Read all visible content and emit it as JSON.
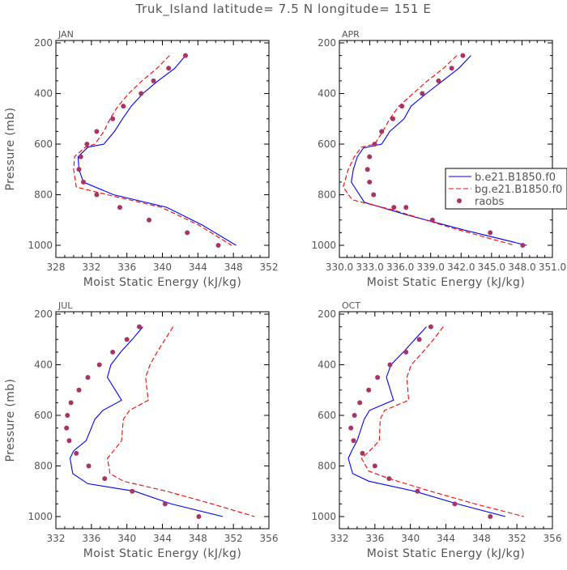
{
  "page": {
    "title": "Truk_Island  latitude= 7.5 N longitude= 151 E"
  },
  "colors": {
    "model1": "#0000ff",
    "model2": "#ff0000",
    "raobs": "#aa3366",
    "axis": "#000000",
    "label": "#555555"
  },
  "chart_data": [
    {
      "type": "line",
      "month": "JAN",
      "xlabel": "Moist Static Energy (kJ/kg)",
      "ylabel": "Pressure (mb)",
      "xlim": [
        328,
        352
      ],
      "ylim": [
        1000,
        200
      ],
      "xticks": [
        328,
        332,
        336,
        340,
        344,
        348,
        352
      ],
      "xtick_labels": [
        "328",
        "332",
        "336",
        "340",
        "344",
        "348",
        "352"
      ],
      "yticks": [
        200,
        400,
        600,
        800,
        1000
      ],
      "ytick_labels": [
        "200",
        "400",
        "600",
        "800",
        "1000"
      ],
      "grid": false,
      "series": [
        {
          "key": "model1",
          "style": "solid",
          "x": [
            342.6,
            341.4,
            339.5,
            337.8,
            336.5,
            335.5,
            334.6,
            333.4,
            331.6,
            330.5,
            330.6,
            331.1,
            334.5,
            340.5,
            344.5,
            348.3
          ],
          "y": [
            250,
            300,
            350,
            400,
            450,
            500,
            550,
            600,
            612,
            650,
            700,
            750,
            800,
            850,
            920,
            1000
          ]
        },
        {
          "key": "model2",
          "style": "dashed",
          "x": [
            340.8,
            339.4,
            337.7,
            336.2,
            335.0,
            334.1,
            333.4,
            332.4,
            331.3,
            330.1,
            330.0,
            330.3,
            333.8,
            339.9,
            344.1,
            347.8
          ],
          "y": [
            250,
            300,
            350,
            400,
            450,
            500,
            550,
            600,
            612,
            650,
            700,
            770,
            800,
            850,
            920,
            1000
          ]
        },
        {
          "key": "raobs",
          "style": "markers",
          "x": [
            342.6,
            340.7,
            339.0,
            337.6,
            335.6,
            334.4,
            332.6,
            331.5,
            330.8,
            330.6,
            331.1,
            332.6,
            335.2,
            338.5,
            342.8,
            346.3
          ],
          "y": [
            250,
            300,
            350,
            400,
            450,
            500,
            550,
            600,
            650,
            700,
            750,
            800,
            850,
            900,
            950,
            1000
          ]
        }
      ]
    },
    {
      "type": "line",
      "month": "APR",
      "xlabel": "Moist Static Energy (kJ/kg)",
      "ylabel": "",
      "xlim": [
        330.03,
        351.03
      ],
      "ylim": [
        1000,
        200
      ],
      "xticks": [
        330.03,
        333.03,
        336.03,
        339.03,
        342.03,
        345.03,
        348.03,
        351.03
      ],
      "xtick_labels": [
        "330.0",
        "333.0",
        "336.0",
        "339.0",
        "342.0",
        "345.0",
        "348.0",
        "351.0"
      ],
      "yticks": [
        200,
        400,
        600,
        800,
        1000
      ],
      "ytick_labels": [
        "200",
        "400",
        "600",
        "800",
        "1000"
      ],
      "grid": false,
      "legend": {
        "placement": "right-middle",
        "entries": [
          {
            "key": "model1",
            "label": "b.e21.B1850.f0"
          },
          {
            "key": "model2",
            "label": "bg.e21.B1850.f0"
          },
          {
            "key": "raobs",
            "label": "raobs"
          }
        ]
      },
      "series": [
        {
          "key": "model1",
          "name": "b.e21.B1850.f0",
          "style": "solid",
          "x": [
            343.0,
            341.8,
            340.2,
            338.6,
            337.1,
            336.4,
            335.0,
            334.2,
            332.4,
            331.8,
            331.4,
            331.2,
            332.5,
            336.7,
            342.4,
            348.5
          ],
          "y": [
            250,
            300,
            350,
            400,
            450,
            500,
            550,
            600,
            615,
            650,
            700,
            750,
            830,
            880,
            940,
            1000
          ]
        },
        {
          "key": "model2",
          "name": "bg.e21.B1850.f0",
          "style": "dashed",
          "x": [
            341.6,
            340.3,
            338.7,
            337.3,
            335.9,
            335.0,
            334.3,
            333.5,
            332.2,
            331.5,
            330.9,
            330.4,
            331.3,
            335.3,
            341.0,
            347.3
          ],
          "y": [
            250,
            300,
            350,
            400,
            450,
            500,
            550,
            600,
            612,
            650,
            700,
            770,
            820,
            860,
            930,
            1000
          ]
        },
        {
          "key": "raobs",
          "name": "raobs",
          "style": "markers",
          "x": [
            342.2,
            341.1,
            339.8,
            338.2,
            336.2,
            335.3,
            334.2,
            333.5,
            333.0,
            332.8,
            333.0,
            333.4,
            335.4,
            336.6,
            339.2,
            344.9,
            348.1
          ],
          "y": [
            250,
            300,
            350,
            400,
            450,
            500,
            550,
            600,
            650,
            700,
            750,
            800,
            850,
            850,
            900,
            950,
            1000
          ]
        }
      ]
    },
    {
      "type": "line",
      "month": "JUL",
      "xlabel": "Moist Static Energy (kJ/kg)",
      "ylabel": "Pressure (mb)",
      "xlim": [
        332,
        356
      ],
      "ylim": [
        1000,
        200
      ],
      "xticks": [
        332,
        336,
        340,
        344,
        348,
        352,
        356
      ],
      "xtick_labels": [
        "332",
        "336",
        "340",
        "344",
        "348",
        "352",
        "356"
      ],
      "yticks": [
        200,
        400,
        600,
        800,
        1000
      ],
      "ytick_labels": [
        "200",
        "400",
        "600",
        "800",
        "1000"
      ],
      "grid": false,
      "series": [
        {
          "key": "model1",
          "style": "solid",
          "x": [
            341.8,
            340.6,
            339.3,
            338.2,
            337.8,
            339.4,
            337.3,
            336.4,
            335.4,
            334.0,
            333.6,
            333.9,
            335.6,
            340.9,
            345.0,
            350.8
          ],
          "y": [
            250,
            300,
            350,
            400,
            450,
            540,
            580,
            615,
            700,
            740,
            770,
            830,
            870,
            900,
            950,
            1000
          ]
        },
        {
          "key": "model2",
          "style": "dashed",
          "x": [
            345.2,
            344.3,
            343.4,
            342.6,
            342.1,
            342.4,
            340.3,
            339.6,
            339.4,
            338.5,
            337.8,
            338.1,
            339.6,
            344.5,
            349.6,
            354.4
          ],
          "y": [
            250,
            300,
            350,
            400,
            450,
            540,
            580,
            615,
            700,
            740,
            770,
            830,
            860,
            900,
            950,
            1000
          ]
        },
        {
          "key": "raobs",
          "style": "markers",
          "x": [
            341.4,
            340.0,
            338.4,
            336.9,
            335.6,
            334.6,
            333.7,
            333.3,
            333.2,
            333.5,
            334.3,
            335.7,
            337.5,
            340.6,
            344.3,
            348.1
          ],
          "y": [
            250,
            300,
            350,
            400,
            450,
            500,
            550,
            600,
            650,
            700,
            750,
            800,
            850,
            900,
            950,
            1000
          ]
        }
      ]
    },
    {
      "type": "line",
      "month": "OCT",
      "xlabel": "Moist Static Energy (kJ/kg)",
      "ylabel": "",
      "xlim": [
        332,
        356
      ],
      "ylim": [
        1000,
        200
      ],
      "xticks": [
        332,
        336,
        340,
        344,
        348,
        352,
        356
      ],
      "xtick_labels": [
        "332",
        "336",
        "340",
        "344",
        "348",
        "352",
        "356"
      ],
      "yticks": [
        200,
        400,
        600,
        800,
        1000
      ],
      "ytick_labels": [
        "200",
        "400",
        "600",
        "800",
        "1000"
      ],
      "grid": false,
      "series": [
        {
          "key": "model1",
          "style": "solid",
          "x": [
            341.8,
            340.5,
            339.2,
            337.8,
            337.3,
            338.1,
            335.4,
            334.8,
            334.0,
            333.4,
            333.0,
            333.5,
            335.3,
            340.5,
            345.3,
            350.7
          ],
          "y": [
            250,
            300,
            350,
            400,
            450,
            540,
            580,
            615,
            700,
            740,
            770,
            830,
            860,
            900,
            950,
            1000
          ]
        },
        {
          "key": "model2",
          "style": "dashed",
          "x": [
            343.7,
            342.6,
            341.4,
            340.1,
            339.6,
            339.8,
            337.1,
            336.6,
            336.5,
            335.4,
            334.5,
            335.3,
            337.6,
            342.3,
            347.3,
            352.8
          ],
          "y": [
            250,
            300,
            350,
            400,
            450,
            540,
            580,
            615,
            700,
            740,
            770,
            820,
            850,
            900,
            950,
            1000
          ]
        },
        {
          "key": "raobs",
          "style": "markers",
          "x": [
            342.3,
            341.0,
            339.5,
            337.7,
            336.3,
            335.3,
            334.3,
            333.7,
            333.3,
            333.6,
            334.6,
            336.0,
            337.6,
            340.8,
            345.0,
            349.0
          ],
          "y": [
            250,
            300,
            350,
            400,
            450,
            500,
            550,
            600,
            650,
            700,
            750,
            800,
            850,
            900,
            950,
            1000
          ]
        }
      ]
    }
  ]
}
